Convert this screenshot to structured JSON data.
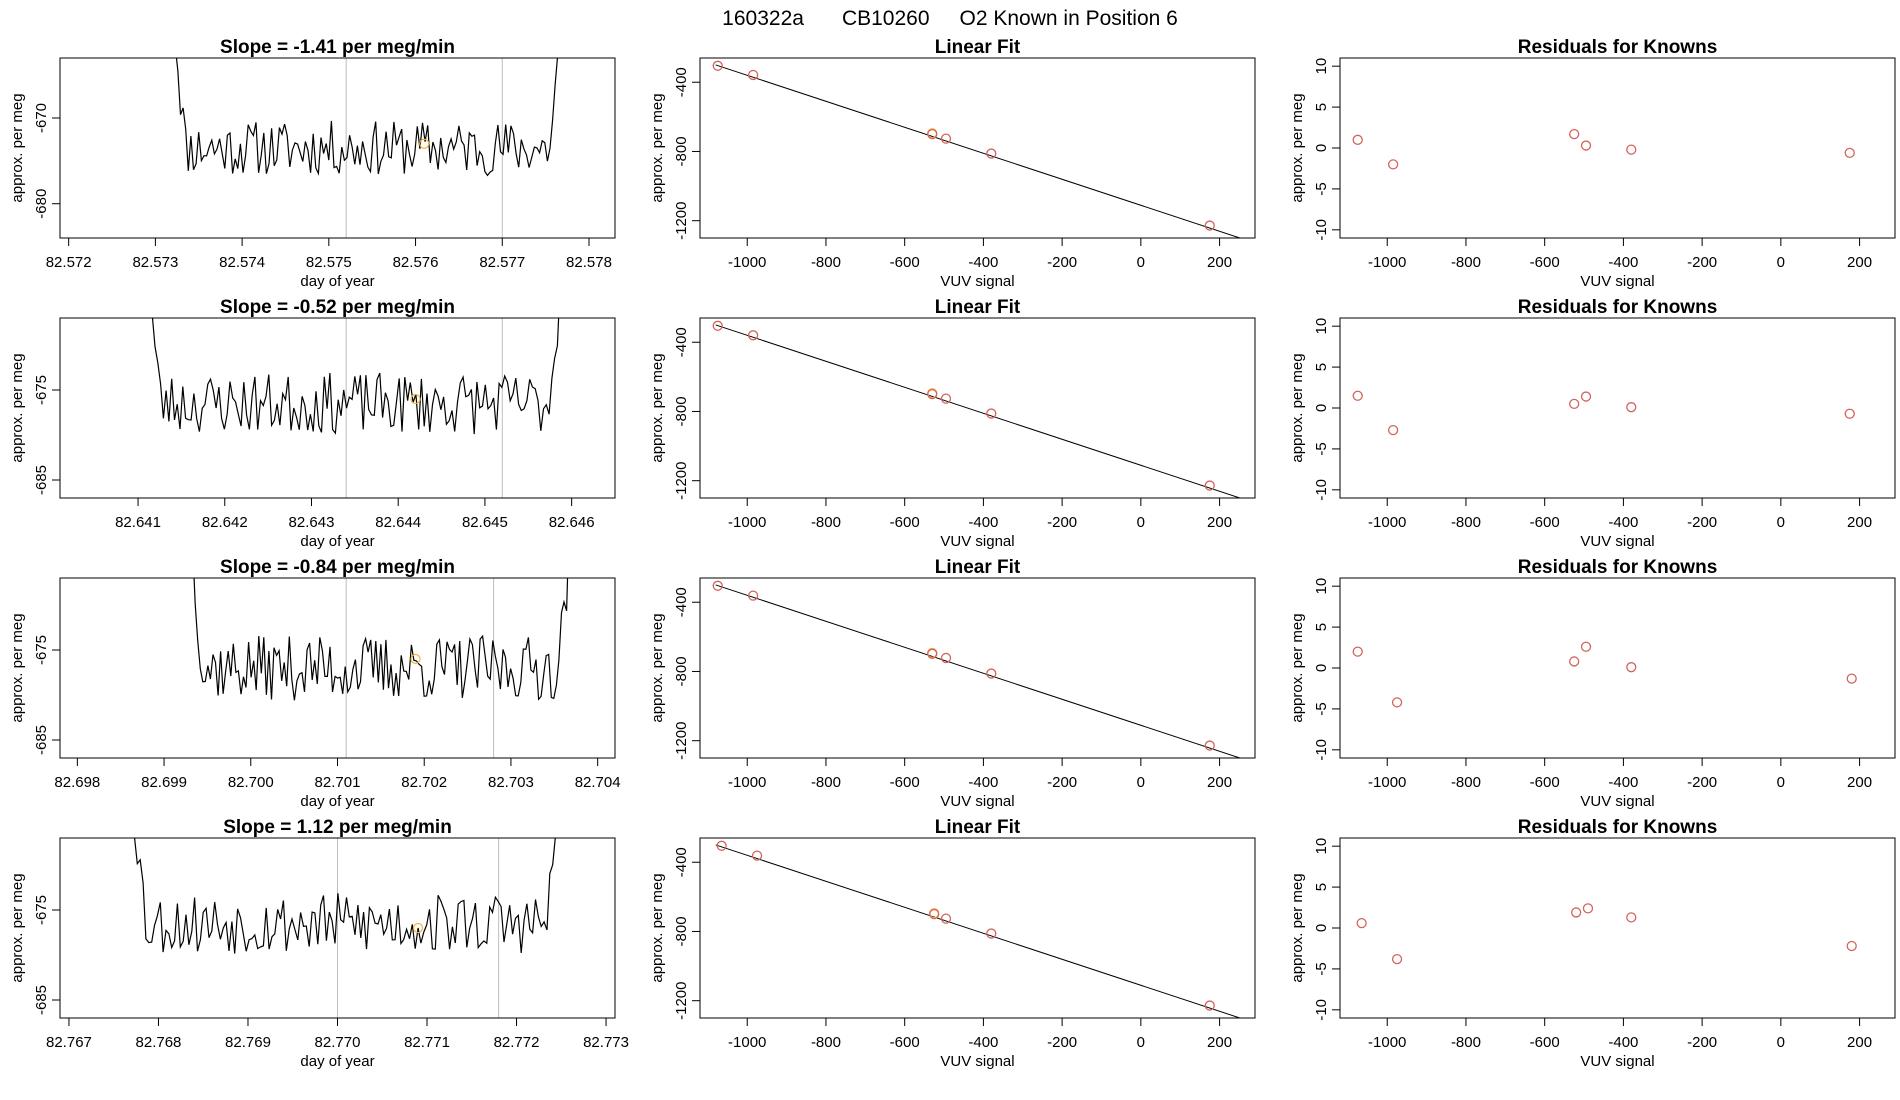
{
  "header": {
    "run": "160322a",
    "cylinder": "CB10260",
    "description": "O2 Known in Position  6"
  },
  "chart_data": [
    {
      "type": "line",
      "panel": "time-series",
      "row": 1,
      "title": "Slope =  -1.41  per meg/min",
      "xlabel": "day of year",
      "ylabel": "approx. per meg",
      "xlim": [
        82.5719,
        82.5783
      ],
      "ylim": [
        -684,
        -663
      ],
      "xticks": [
        82.572,
        82.573,
        82.574,
        82.575,
        82.576,
        82.577,
        82.578
      ],
      "xtick_labels": [
        "82.572",
        "82.573",
        "82.574",
        "82.575",
        "82.576",
        "82.577",
        "82.578"
      ],
      "yticks": [
        -670,
        -680
      ],
      "ytick_labels": [
        "-670",
        "-680"
      ],
      "x_start": 82.5732,
      "x_end": 82.5777,
      "base": -673.5,
      "amplitude": 3.2,
      "seed": 11,
      "vlines": [
        82.5752,
        82.577
      ],
      "marker": {
        "x": 82.5761,
        "y": -673
      }
    },
    {
      "type": "scatter",
      "panel": "linear-fit",
      "row": 1,
      "title": "Linear Fit",
      "xlabel": "VUV signal",
      "ylabel": "approx. per meg",
      "xlim": [
        -1120,
        290
      ],
      "ylim": [
        -1300,
        -260
      ],
      "xticks": [
        -1000,
        -800,
        -600,
        -400,
        -200,
        0,
        200
      ],
      "xtick_labels": [
        "-1000",
        "-800",
        "-600",
        "-400",
        "-200",
        "0",
        "200"
      ],
      "yticks": [
        -400,
        -800,
        -1200
      ],
      "ytick_labels": [
        "-400",
        "-800",
        "-1200"
      ],
      "points": [
        {
          "x": -1075,
          "y": -305
        },
        {
          "x": -985,
          "y": -358
        },
        {
          "x": -530,
          "y": -700
        },
        {
          "x": -495,
          "y": -726
        },
        {
          "x": -380,
          "y": -812
        },
        {
          "x": 175,
          "y": -1228
        }
      ],
      "highlight": {
        "x": -530,
        "y": -695
      },
      "fit_line": [
        {
          "x": -1080,
          "y": -300
        },
        {
          "x": 265,
          "y": -1310
        }
      ]
    },
    {
      "type": "scatter",
      "panel": "residuals",
      "row": 1,
      "title": "Residuals for Knowns",
      "xlabel": "VUV signal",
      "ylabel": "approx. per meg",
      "xlim": [
        -1120,
        290
      ],
      "ylim": [
        -11,
        11
      ],
      "xticks": [
        -1000,
        -800,
        -600,
        -400,
        -200,
        0,
        200
      ],
      "xtick_labels": [
        "-1000",
        "-800",
        "-600",
        "-400",
        "-200",
        "0",
        "200"
      ],
      "yticks": [
        10,
        5,
        0,
        -5,
        -10
      ],
      "ytick_labels": [
        "10",
        "5",
        "0",
        "-5",
        "-10"
      ],
      "points": [
        {
          "x": -1075,
          "y": 1.0
        },
        {
          "x": -985,
          "y": -2.0
        },
        {
          "x": -525,
          "y": 1.7
        },
        {
          "x": -495,
          "y": 0.3
        },
        {
          "x": -380,
          "y": -0.2
        },
        {
          "x": 175,
          "y": -0.6
        }
      ]
    },
    {
      "type": "line",
      "panel": "time-series",
      "row": 2,
      "title": "Slope =  -0.52  per meg/min",
      "xlabel": "day of year",
      "ylabel": "approx. per meg",
      "xlim": [
        82.6401,
        82.6465
      ],
      "ylim": [
        -687,
        -667
      ],
      "xticks": [
        82.641,
        82.642,
        82.643,
        82.644,
        82.645,
        82.646
      ],
      "xtick_labels": [
        "82.641",
        "82.642",
        "82.643",
        "82.644",
        "82.645",
        "82.646"
      ],
      "yticks": [
        -675,
        -685
      ],
      "ytick_labels": [
        "-675",
        "-685"
      ],
      "x_start": 82.6411,
      "x_end": 82.6459,
      "base": -676.5,
      "amplitude": 3.4,
      "seed": 23,
      "vlines": [
        82.6434,
        82.6452
      ],
      "marker": {
        "x": 82.6442,
        "y": -676
      }
    },
    {
      "type": "scatter",
      "panel": "linear-fit",
      "row": 2,
      "title": "Linear Fit",
      "xlabel": "VUV signal",
      "ylabel": "approx. per meg",
      "xlim": [
        -1120,
        290
      ],
      "ylim": [
        -1300,
        -260
      ],
      "xticks": [
        -1000,
        -800,
        -600,
        -400,
        -200,
        0,
        200
      ],
      "xtick_labels": [
        "-1000",
        "-800",
        "-600",
        "-400",
        "-200",
        "0",
        "200"
      ],
      "yticks": [
        -400,
        -800,
        -1200
      ],
      "ytick_labels": [
        "-400",
        "-800",
        "-1200"
      ],
      "points": [
        {
          "x": -1075,
          "y": -305
        },
        {
          "x": -985,
          "y": -360
        },
        {
          "x": -530,
          "y": -700
        },
        {
          "x": -495,
          "y": -726
        },
        {
          "x": -380,
          "y": -812
        },
        {
          "x": 175,
          "y": -1228
        }
      ],
      "highlight": {
        "x": -530,
        "y": -695
      },
      "fit_line": [
        {
          "x": -1080,
          "y": -300
        },
        {
          "x": 265,
          "y": -1310
        }
      ]
    },
    {
      "type": "scatter",
      "panel": "residuals",
      "row": 2,
      "title": "Residuals for Knowns",
      "xlabel": "VUV signal",
      "ylabel": "approx. per meg",
      "xlim": [
        -1120,
        290
      ],
      "ylim": [
        -11,
        11
      ],
      "xticks": [
        -1000,
        -800,
        -600,
        -400,
        -200,
        0,
        200
      ],
      "xtick_labels": [
        "-1000",
        "-800",
        "-600",
        "-400",
        "-200",
        "0",
        "200"
      ],
      "yticks": [
        10,
        5,
        0,
        -5,
        -10
      ],
      "ytick_labels": [
        "10",
        "5",
        "0",
        "-5",
        "-10"
      ],
      "points": [
        {
          "x": -1075,
          "y": 1.5
        },
        {
          "x": -985,
          "y": -2.7
        },
        {
          "x": -525,
          "y": 0.5
        },
        {
          "x": -495,
          "y": 1.4
        },
        {
          "x": -380,
          "y": 0.1
        },
        {
          "x": 175,
          "y": -0.7
        }
      ]
    },
    {
      "type": "line",
      "panel": "time-series",
      "row": 3,
      "title": "Slope =  -0.84  per meg/min",
      "xlabel": "day of year",
      "ylabel": "approx. per meg",
      "xlim": [
        82.6978,
        82.7042
      ],
      "ylim": [
        -687,
        -667
      ],
      "xticks": [
        82.698,
        82.699,
        82.7,
        82.701,
        82.702,
        82.703,
        82.704
      ],
      "xtick_labels": [
        "82.698",
        "82.699",
        "82.700",
        "82.701",
        "82.702",
        "82.703",
        "82.704"
      ],
      "yticks": [
        -675,
        -685
      ],
      "ytick_labels": [
        "-675",
        "-685"
      ],
      "x_start": 82.6993,
      "x_end": 82.7037,
      "base": -677,
      "amplitude": 3.6,
      "seed": 37,
      "vlines": [
        82.7011,
        82.7028
      ],
      "marker": {
        "x": 82.7019,
        "y": -676
      }
    },
    {
      "type": "scatter",
      "panel": "linear-fit",
      "row": 3,
      "title": "Linear Fit",
      "xlabel": "VUV signal",
      "ylabel": "approx. per meg",
      "xlim": [
        -1120,
        290
      ],
      "ylim": [
        -1300,
        -260
      ],
      "xticks": [
        -1000,
        -800,
        -600,
        -400,
        -200,
        0,
        200
      ],
      "xtick_labels": [
        "-1000",
        "-800",
        "-600",
        "-400",
        "-200",
        "0",
        "200"
      ],
      "yticks": [
        -400,
        -800,
        -1200
      ],
      "ytick_labels": [
        "-400",
        "-800",
        "-1200"
      ],
      "points": [
        {
          "x": -1075,
          "y": -305
        },
        {
          "x": -985,
          "y": -362
        },
        {
          "x": -530,
          "y": -698
        },
        {
          "x": -495,
          "y": -722
        },
        {
          "x": -380,
          "y": -812
        },
        {
          "x": 175,
          "y": -1228
        }
      ],
      "highlight": {
        "x": -530,
        "y": -693
      },
      "fit_line": [
        {
          "x": -1080,
          "y": -300
        },
        {
          "x": 265,
          "y": -1310
        }
      ]
    },
    {
      "type": "scatter",
      "panel": "residuals",
      "row": 3,
      "title": "Residuals for Knowns",
      "xlabel": "VUV signal",
      "ylabel": "approx. per meg",
      "xlim": [
        -1120,
        290
      ],
      "ylim": [
        -11,
        11
      ],
      "xticks": [
        -1000,
        -800,
        -600,
        -400,
        -200,
        0,
        200
      ],
      "xtick_labels": [
        "-1000",
        "-800",
        "-600",
        "-400",
        "-200",
        "0",
        "200"
      ],
      "yticks": [
        10,
        5,
        0,
        -5,
        -10
      ],
      "ytick_labels": [
        "10",
        "5",
        "0",
        "-5",
        "-10"
      ],
      "points": [
        {
          "x": -1075,
          "y": 2.0
        },
        {
          "x": -975,
          "y": -4.2
        },
        {
          "x": -525,
          "y": 0.8
        },
        {
          "x": -495,
          "y": 2.6
        },
        {
          "x": -380,
          "y": 0.1
        },
        {
          "x": 180,
          "y": -1.3
        }
      ]
    },
    {
      "type": "line",
      "panel": "time-series",
      "row": 4,
      "title": "Slope =  1.12  per meg/min",
      "xlabel": "day of year",
      "ylabel": "approx. per meg",
      "xlim": [
        82.7669,
        82.7731
      ],
      "ylim": [
        -687,
        -667
      ],
      "xticks": [
        82.767,
        82.768,
        82.769,
        82.77,
        82.771,
        82.772,
        82.773
      ],
      "xtick_labels": [
        "82.767",
        "82.768",
        "82.769",
        "82.770",
        "82.771",
        "82.772",
        "82.773"
      ],
      "yticks": [
        -675,
        -685
      ],
      "ytick_labels": [
        "-675",
        "-685"
      ],
      "x_start": 82.7677,
      "x_end": 82.7725,
      "base": -676.5,
      "amplitude": 3.4,
      "seed": 53,
      "vlines": [
        82.77,
        82.7718
      ],
      "marker": {
        "x": 82.7709,
        "y": -677
      }
    },
    {
      "type": "scatter",
      "panel": "linear-fit",
      "row": 4,
      "title": "Linear Fit",
      "xlabel": "VUV signal",
      "ylabel": "approx. per meg",
      "xlim": [
        -1120,
        290
      ],
      "ylim": [
        -1300,
        -260
      ],
      "xticks": [
        -1000,
        -800,
        -600,
        -400,
        -200,
        0,
        200
      ],
      "xtick_labels": [
        "-1000",
        "-800",
        "-600",
        "-400",
        "-200",
        "0",
        "200"
      ],
      "yticks": [
        -400,
        -800,
        -1200
      ],
      "ytick_labels": [
        "-400",
        "-800",
        "-1200"
      ],
      "points": [
        {
          "x": -1065,
          "y": -305
        },
        {
          "x": -975,
          "y": -362
        },
        {
          "x": -525,
          "y": -700
        },
        {
          "x": -495,
          "y": -726
        },
        {
          "x": -380,
          "y": -812
        },
        {
          "x": 175,
          "y": -1228
        }
      ],
      "highlight": {
        "x": -525,
        "y": -694
      },
      "fit_line": [
        {
          "x": -1080,
          "y": -300
        },
        {
          "x": 265,
          "y": -1310
        }
      ]
    },
    {
      "type": "scatter",
      "panel": "residuals",
      "row": 4,
      "title": "Residuals for Knowns",
      "xlabel": "VUV signal",
      "ylabel": "approx. per meg",
      "xlim": [
        -1120,
        290
      ],
      "ylim": [
        -11,
        11
      ],
      "xticks": [
        -1000,
        -800,
        -600,
        -400,
        -200,
        0,
        200
      ],
      "xtick_labels": [
        "-1000",
        "-800",
        "-600",
        "-400",
        "-200",
        "0",
        "200"
      ],
      "yticks": [
        10,
        5,
        0,
        -5,
        -10
      ],
      "ytick_labels": [
        "10",
        "5",
        "0",
        "-5",
        "-10"
      ],
      "points": [
        {
          "x": -1065,
          "y": 0.6
        },
        {
          "x": -975,
          "y": -3.8
        },
        {
          "x": -520,
          "y": 1.9
        },
        {
          "x": -490,
          "y": 2.4
        },
        {
          "x": -380,
          "y": 1.3
        },
        {
          "x": 180,
          "y": -2.2
        }
      ]
    }
  ],
  "colors": {
    "line": "#000000",
    "point": "#d2635e",
    "highlight": "#f2b63a",
    "vline": "#bdbdbd",
    "axis": "#000000"
  }
}
